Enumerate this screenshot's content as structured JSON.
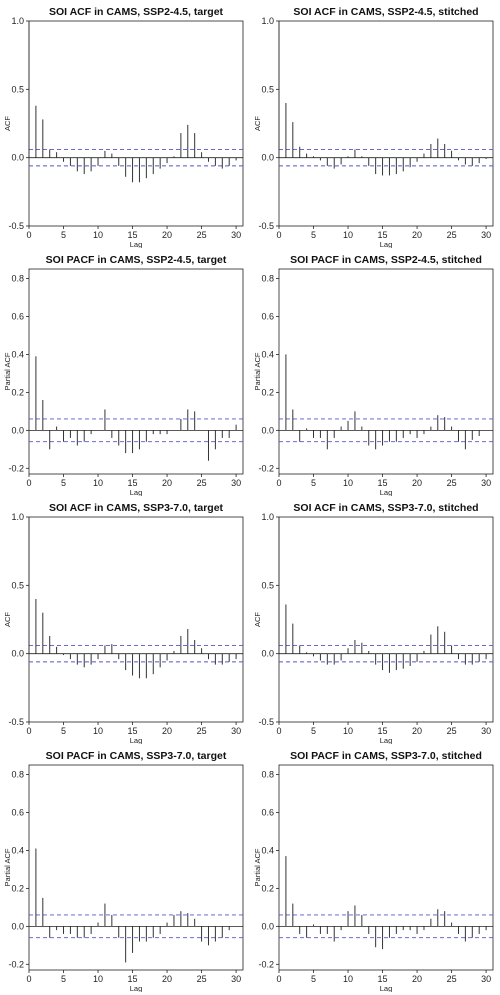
{
  "chart_data": [
    {
      "type": "bar",
      "title": "SOI ACF in CAMS, SSP2-4.5, target",
      "xlabel": "Lag",
      "ylabel": "ACF",
      "xlim": [
        0,
        31
      ],
      "ylim": [
        -0.5,
        1.0
      ],
      "xticks": [
        "0",
        "5",
        "10",
        "15",
        "20",
        "25",
        "30"
      ],
      "yticks": [
        "-0.5",
        "0.0",
        "0.5",
        "1.0"
      ],
      "ci": 0.06,
      "ci_color": "#5555cc",
      "x": [
        0,
        1,
        2,
        3,
        4,
        5,
        6,
        7,
        8,
        9,
        10,
        11,
        12,
        13,
        14,
        15,
        16,
        17,
        18,
        19,
        20,
        21,
        22,
        23,
        24,
        25,
        26,
        27,
        28,
        29,
        30
      ],
      "values": [
        1.0,
        0.38,
        0.28,
        0.06,
        0.04,
        -0.03,
        -0.06,
        -0.1,
        -0.12,
        -0.1,
        -0.06,
        0.05,
        0.03,
        -0.06,
        -0.14,
        -0.18,
        -0.18,
        -0.15,
        -0.12,
        -0.08,
        -0.04,
        0.01,
        0.18,
        0.24,
        0.18,
        0.04,
        -0.03,
        -0.06,
        -0.08,
        -0.06,
        -0.02
      ]
    },
    {
      "type": "bar",
      "title": "SOI ACF in CAMS, SSP2-4.5, stitched",
      "xlabel": "Lag",
      "ylabel": "ACF",
      "xlim": [
        0,
        31
      ],
      "ylim": [
        -0.5,
        1.0
      ],
      "xticks": [
        "0",
        "5",
        "10",
        "15",
        "20",
        "25",
        "30"
      ],
      "yticks": [
        "-0.5",
        "0.0",
        "0.5",
        "1.0"
      ],
      "ci": 0.06,
      "ci_color": "#5555cc",
      "x": [
        0,
        1,
        2,
        3,
        4,
        5,
        6,
        7,
        8,
        9,
        10,
        11,
        12,
        13,
        14,
        15,
        16,
        17,
        18,
        19,
        20,
        21,
        22,
        23,
        24,
        25,
        26,
        27,
        28,
        29,
        30
      ],
      "values": [
        1.0,
        0.4,
        0.26,
        0.08,
        0.03,
        0.01,
        -0.02,
        -0.06,
        -0.08,
        -0.05,
        0.01,
        0.06,
        0.01,
        -0.06,
        -0.12,
        -0.13,
        -0.13,
        -0.12,
        -0.1,
        -0.07,
        -0.03,
        0.03,
        0.1,
        0.14,
        0.1,
        0.05,
        -0.02,
        -0.05,
        -0.06,
        -0.04,
        -0.01
      ]
    },
    {
      "type": "bar",
      "title": "SOI PACF in CAMS, SSP2-4.5, target",
      "xlabel": "Lag",
      "ylabel": "Partial ACF",
      "xlim": [
        0,
        31
      ],
      "ylim": [
        -0.23,
        0.85
      ],
      "xticks": [
        "0",
        "5",
        "10",
        "15",
        "20",
        "25",
        "30"
      ],
      "yticks": [
        "-0.2",
        "0.0",
        "0.2",
        "0.4",
        "0.6",
        "0.8"
      ],
      "ci": 0.06,
      "ci_color": "#5555cc",
      "x": [
        1,
        2,
        3,
        4,
        5,
        6,
        7,
        8,
        9,
        10,
        11,
        12,
        13,
        14,
        15,
        16,
        17,
        18,
        19,
        20,
        21,
        22,
        23,
        24,
        25,
        26,
        27,
        28,
        29,
        30
      ],
      "values": [
        0.39,
        0.16,
        -0.1,
        0.02,
        -0.06,
        -0.04,
        -0.08,
        -0.06,
        -0.02,
        0.0,
        0.11,
        -0.04,
        -0.08,
        -0.12,
        -0.12,
        -0.1,
        -0.06,
        -0.02,
        -0.02,
        -0.02,
        0.0,
        0.06,
        0.11,
        0.1,
        0.0,
        -0.16,
        -0.1,
        -0.04,
        -0.04,
        0.03
      ]
    },
    {
      "type": "bar",
      "title": "SOI PACF in CAMS, SSP2-4.5, stitched",
      "xlabel": "Lag",
      "ylabel": "Partial ACF",
      "xlim": [
        0,
        31
      ],
      "ylim": [
        -0.23,
        0.85
      ],
      "xticks": [
        "0",
        "5",
        "10",
        "15",
        "20",
        "25",
        "30"
      ],
      "yticks": [
        "-0.2",
        "0.0",
        "0.2",
        "0.4",
        "0.6",
        "0.8"
      ],
      "ci": 0.06,
      "ci_color": "#5555cc",
      "x": [
        1,
        2,
        3,
        4,
        5,
        6,
        7,
        8,
        9,
        10,
        11,
        12,
        13,
        14,
        15,
        16,
        17,
        18,
        19,
        20,
        21,
        22,
        23,
        24,
        25,
        26,
        27,
        28,
        29,
        30
      ],
      "values": [
        0.4,
        0.11,
        -0.06,
        0.01,
        -0.04,
        -0.04,
        -0.1,
        -0.04,
        0.02,
        0.05,
        0.1,
        0.02,
        -0.08,
        -0.1,
        -0.08,
        -0.06,
        -0.06,
        -0.04,
        -0.02,
        -0.04,
        -0.02,
        0.02,
        0.08,
        0.07,
        0.02,
        -0.06,
        -0.1,
        -0.05,
        -0.03,
        0.0
      ]
    },
    {
      "type": "bar",
      "title": "SOI ACF in CAMS, SSP3-7.0, target",
      "xlabel": "Lag",
      "ylabel": "ACF",
      "xlim": [
        0,
        31
      ],
      "ylim": [
        -0.5,
        1.0
      ],
      "xticks": [
        "0",
        "5",
        "10",
        "15",
        "20",
        "25",
        "30"
      ],
      "yticks": [
        "-0.5",
        "0.0",
        "0.5",
        "1.0"
      ],
      "ci": 0.06,
      "ci_color": "#5555cc",
      "x": [
        0,
        1,
        2,
        3,
        4,
        5,
        6,
        7,
        8,
        9,
        10,
        11,
        12,
        13,
        14,
        15,
        16,
        17,
        18,
        19,
        20,
        21,
        22,
        23,
        24,
        25,
        26,
        27,
        28,
        29,
        30
      ],
      "values": [
        1.0,
        0.4,
        0.3,
        0.13,
        0.05,
        -0.01,
        -0.04,
        -0.08,
        -0.1,
        -0.08,
        -0.04,
        0.06,
        0.07,
        -0.04,
        -0.12,
        -0.16,
        -0.18,
        -0.18,
        -0.15,
        -0.1,
        -0.05,
        0.02,
        0.13,
        0.18,
        0.1,
        0.04,
        -0.04,
        -0.08,
        -0.08,
        -0.06,
        -0.04
      ]
    },
    {
      "type": "bar",
      "title": "SOI ACF in CAMS, SSP3-7.0, stitched",
      "xlabel": "Lag",
      "ylabel": "ACF",
      "xlim": [
        0,
        31
      ],
      "ylim": [
        -0.5,
        1.0
      ],
      "xticks": [
        "0",
        "5",
        "10",
        "15",
        "20",
        "25",
        "30"
      ],
      "yticks": [
        "-0.5",
        "0.0",
        "0.5",
        "1.0"
      ],
      "ci": 0.06,
      "ci_color": "#5555cc",
      "x": [
        0,
        1,
        2,
        3,
        4,
        5,
        6,
        7,
        8,
        9,
        10,
        11,
        12,
        13,
        14,
        15,
        16,
        17,
        18,
        19,
        20,
        21,
        22,
        23,
        24,
        25,
        26,
        27,
        28,
        29,
        30
      ],
      "values": [
        1.0,
        0.36,
        0.22,
        0.06,
        0.01,
        -0.02,
        -0.05,
        -0.08,
        -0.08,
        -0.05,
        0.04,
        0.1,
        0.08,
        0.02,
        -0.08,
        -0.12,
        -0.14,
        -0.12,
        -0.11,
        -0.09,
        -0.06,
        0.02,
        0.14,
        0.2,
        0.16,
        0.06,
        -0.04,
        -0.08,
        -0.08,
        -0.06,
        -0.04
      ]
    },
    {
      "type": "bar",
      "title": "SOI PACF in CAMS, SSP3-7.0, target",
      "xlabel": "Lag",
      "ylabel": "Partial ACF",
      "xlim": [
        0,
        31
      ],
      "ylim": [
        -0.23,
        0.85
      ],
      "xticks": [
        "0",
        "5",
        "10",
        "15",
        "20",
        "25",
        "30"
      ],
      "yticks": [
        "-0.2",
        "0.0",
        "0.2",
        "0.4",
        "0.6",
        "0.8"
      ],
      "ci": 0.06,
      "ci_color": "#5555cc",
      "x": [
        1,
        2,
        3,
        4,
        5,
        6,
        7,
        8,
        9,
        10,
        11,
        12,
        13,
        14,
        15,
        16,
        17,
        18,
        19,
        20,
        21,
        22,
        23,
        24,
        25,
        26,
        27,
        28,
        29,
        30
      ],
      "values": [
        0.41,
        0.15,
        -0.06,
        -0.02,
        -0.04,
        -0.04,
        -0.06,
        -0.06,
        -0.04,
        0.02,
        0.12,
        0.06,
        -0.06,
        -0.19,
        -0.14,
        -0.08,
        -0.08,
        -0.06,
        -0.04,
        0.02,
        0.06,
        0.08,
        0.07,
        0.04,
        -0.08,
        -0.1,
        -0.08,
        -0.06,
        -0.02,
        0.0
      ]
    },
    {
      "type": "bar",
      "title": "SOI PACF in CAMS, SSP3-7.0, stitched",
      "xlabel": "Lag",
      "ylabel": "Partial ACF",
      "xlim": [
        0,
        31
      ],
      "ylim": [
        -0.23,
        0.85
      ],
      "xticks": [
        "0",
        "5",
        "10",
        "15",
        "20",
        "25",
        "30"
      ],
      "yticks": [
        "-0.2",
        "0.0",
        "0.2",
        "0.4",
        "0.6",
        "0.8"
      ],
      "ci": 0.06,
      "ci_color": "#5555cc",
      "x": [
        1,
        2,
        3,
        4,
        5,
        6,
        7,
        8,
        9,
        10,
        11,
        12,
        13,
        14,
        15,
        16,
        17,
        18,
        19,
        20,
        21,
        22,
        23,
        24,
        25,
        26,
        27,
        28,
        29,
        30
      ],
      "values": [
        0.37,
        0.12,
        -0.04,
        -0.06,
        0.01,
        -0.04,
        -0.04,
        -0.08,
        -0.02,
        0.08,
        0.11,
        0.06,
        -0.04,
        -0.11,
        -0.12,
        -0.06,
        -0.04,
        -0.02,
        -0.02,
        -0.04,
        -0.02,
        0.04,
        0.09,
        0.08,
        0.02,
        -0.04,
        -0.08,
        -0.06,
        -0.04,
        -0.02
      ]
    }
  ]
}
